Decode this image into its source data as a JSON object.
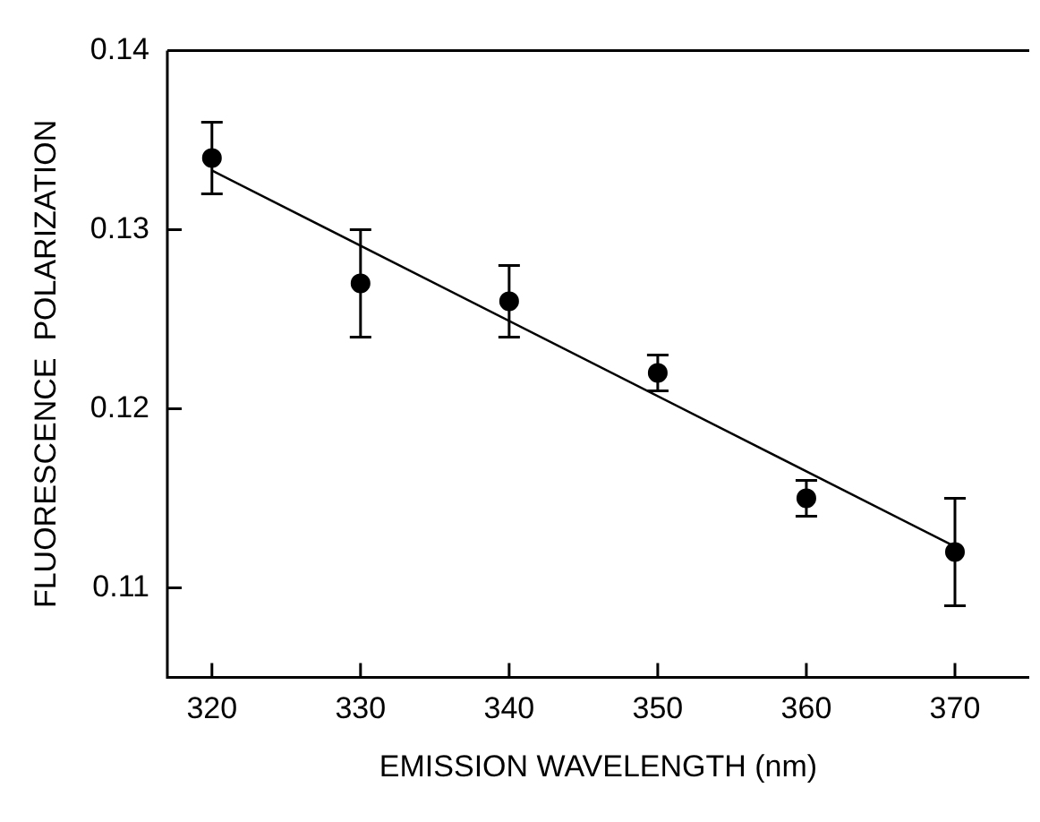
{
  "chart_data": {
    "type": "scatter",
    "xlabel": "EMISSION WAVELENGTH (nm)",
    "ylabel": "FLUORESCENCE  POLARIZATION",
    "xlim": [
      317,
      375
    ],
    "xticks": [
      320,
      330,
      340,
      350,
      360,
      370
    ],
    "ylim": [
      0.105,
      0.14
    ],
    "yticks": [
      0.11,
      0.12,
      0.13,
      0.14
    ],
    "grid": false,
    "legend": false,
    "series": [
      {
        "marker": "circle",
        "color": "#000000",
        "x": [
          320,
          330,
          340,
          350,
          360,
          370
        ],
        "values": [
          0.134,
          0.127,
          0.126,
          0.122,
          0.115,
          0.112
        ],
        "errors": [
          [
            0.132,
            0.136
          ],
          [
            0.124,
            0.13
          ],
          [
            0.124,
            0.128
          ],
          [
            0.121,
            0.123
          ],
          [
            0.114,
            0.116
          ],
          [
            0.109,
            0.115
          ]
        ]
      },
      {
        "type": "line",
        "marker": "none",
        "color": "#000000",
        "x": [
          320,
          370
        ],
        "values": [
          0.1333,
          0.1123
        ]
      }
    ]
  }
}
